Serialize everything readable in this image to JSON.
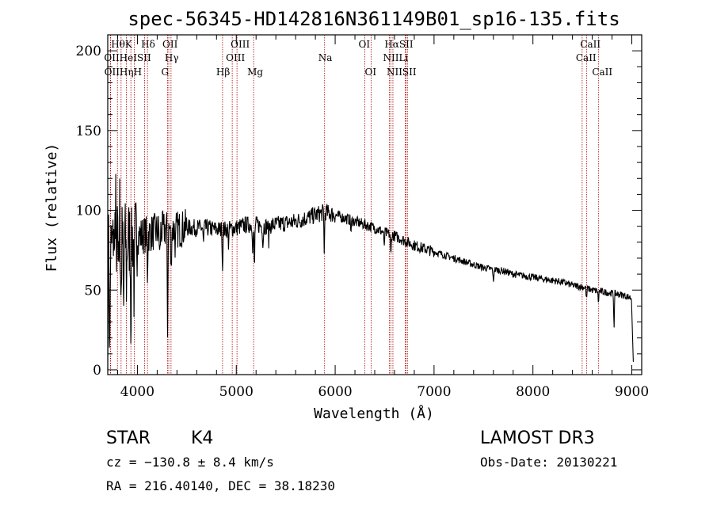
{
  "chart_data": {
    "type": "line",
    "title": "spec-56345-HD142816N361149B01_sp16-135.fits",
    "xlabel": "Wavelength (Å)",
    "ylabel": "Flux (relative)",
    "xlim": [
      3700,
      9100
    ],
    "ylim": [
      -3,
      210
    ],
    "x_ticks": [
      4000,
      5000,
      6000,
      7000,
      8000,
      9000
    ],
    "y_ticks": [
      0,
      50,
      100,
      150,
      200
    ],
    "grid": false,
    "series": [
      {
        "name": "flux",
        "color": "#000000",
        "continuum": [
          [
            3700,
            75
          ],
          [
            3800,
            80
          ],
          [
            3900,
            82
          ],
          [
            4000,
            84
          ],
          [
            4100,
            85
          ],
          [
            4200,
            87
          ],
          [
            4300,
            88
          ],
          [
            4400,
            88
          ],
          [
            4500,
            89
          ],
          [
            4600,
            89
          ],
          [
            4700,
            89
          ],
          [
            4800,
            88
          ],
          [
            4900,
            88
          ],
          [
            5000,
            89
          ],
          [
            5100,
            91
          ],
          [
            5200,
            91
          ],
          [
            5300,
            90
          ],
          [
            5400,
            91
          ],
          [
            5500,
            92
          ],
          [
            5600,
            93
          ],
          [
            5700,
            95
          ],
          [
            5800,
            97
          ],
          [
            5900,
            99
          ],
          [
            6000,
            97
          ],
          [
            6100,
            95
          ],
          [
            6200,
            93
          ],
          [
            6300,
            91
          ],
          [
            6400,
            89
          ],
          [
            6500,
            86
          ],
          [
            6600,
            84
          ],
          [
            6700,
            81
          ],
          [
            6800,
            78
          ],
          [
            6900,
            76
          ],
          [
            7000,
            74
          ],
          [
            7100,
            72
          ],
          [
            7200,
            70
          ],
          [
            7300,
            68
          ],
          [
            7400,
            66
          ],
          [
            7500,
            64
          ],
          [
            7600,
            63
          ],
          [
            7700,
            62
          ],
          [
            7800,
            60
          ],
          [
            7900,
            59
          ],
          [
            8000,
            58
          ],
          [
            8100,
            57
          ],
          [
            8200,
            56
          ],
          [
            8300,
            55
          ],
          [
            8400,
            53
          ],
          [
            8500,
            52
          ],
          [
            8600,
            50
          ],
          [
            8700,
            49
          ],
          [
            8800,
            48
          ],
          [
            8900,
            47
          ],
          [
            9000,
            45
          ]
        ],
        "absorption_features": [
          [
            3720,
            75
          ],
          [
            3770,
            35
          ],
          [
            3835,
            40
          ],
          [
            3860,
            55
          ],
          [
            3890,
            30
          ],
          [
            3934,
            55
          ],
          [
            3968,
            50
          ],
          [
            4101,
            25
          ],
          [
            4227,
            20
          ],
          [
            4305,
            60
          ],
          [
            4340,
            30
          ],
          [
            4384,
            12
          ],
          [
            4668,
            12
          ],
          [
            4861,
            25
          ],
          [
            4920,
            10
          ],
          [
            5167,
            18
          ],
          [
            5183,
            32
          ],
          [
            5270,
            14
          ],
          [
            5328,
            10
          ],
          [
            5890,
            26
          ],
          [
            6160,
            8
          ],
          [
            6495,
            10
          ],
          [
            6563,
            16
          ],
          [
            7600,
            10
          ],
          [
            8542,
            8
          ],
          [
            8662,
            8
          ],
          [
            8820,
            22
          ]
        ],
        "edge_values": [
          [
            3700,
            0
          ],
          [
            9015,
            5
          ]
        ]
      }
    ],
    "spectral_lines": [
      {
        "label": "HθK",
        "row": 1,
        "lines": [
          3798,
          3934
        ]
      },
      {
        "label": "Hδ",
        "row": 1,
        "lines": [
          4102
        ]
      },
      {
        "label": "OII",
        "row": 1,
        "lines": [
          4317
        ]
      },
      {
        "label": "OIII",
        "row": 1,
        "lines": [
          5007
        ]
      },
      {
        "label": "OI",
        "row": 1,
        "lines": [
          6300
        ]
      },
      {
        "label": "HαSII",
        "row": 1,
        "lines": [
          6563,
          6717
        ]
      },
      {
        "label": "CaII",
        "row": 1,
        "lines": [
          8542
        ]
      },
      {
        "label": "OIIHeISII",
        "row": 2,
        "lines": [
          3727,
          3889,
          4072
        ]
      },
      {
        "label": "Hγ",
        "row": 2,
        "lines": [
          4340
        ]
      },
      {
        "label": "OIII",
        "row": 2,
        "lines": [
          4959
        ]
      },
      {
        "label": "Na",
        "row": 2,
        "lines": [
          5893
        ]
      },
      {
        "label": "NII",
        "row": 2,
        "lines": [
          6548
        ]
      },
      {
        "label": "Li",
        "row": 2,
        "lines": [
          6708
        ]
      },
      {
        "label": "CaII",
        "row": 2,
        "lines": [
          8498
        ]
      },
      {
        "label": "OIIHηH",
        "row": 3,
        "lines": [
          3729,
          3835,
          3968
        ]
      },
      {
        "label": "G",
        "row": 3,
        "lines": [
          4305
        ]
      },
      {
        "label": "Hβ",
        "row": 3,
        "lines": [
          4861
        ]
      },
      {
        "label": "Mg",
        "row": 3,
        "lines": [
          5175
        ]
      },
      {
        "label": "OI",
        "row": 3,
        "lines": [
          6364
        ]
      },
      {
        "label": "NIISII",
        "row": 3,
        "lines": [
          6584,
          6731
        ]
      },
      {
        "label": "CaII",
        "row": 3,
        "lines": [
          8662
        ]
      }
    ],
    "line_marker_color": "#aa0000"
  },
  "info": {
    "object_class": "STAR",
    "subclass": "K4",
    "survey": "LAMOST DR3",
    "redshift": "cz = −130.8 ± 8.4 km/s",
    "obs_date": "Obs-Date: 20130221",
    "coords": "RA = 216.40140, DEC =  38.18230"
  }
}
